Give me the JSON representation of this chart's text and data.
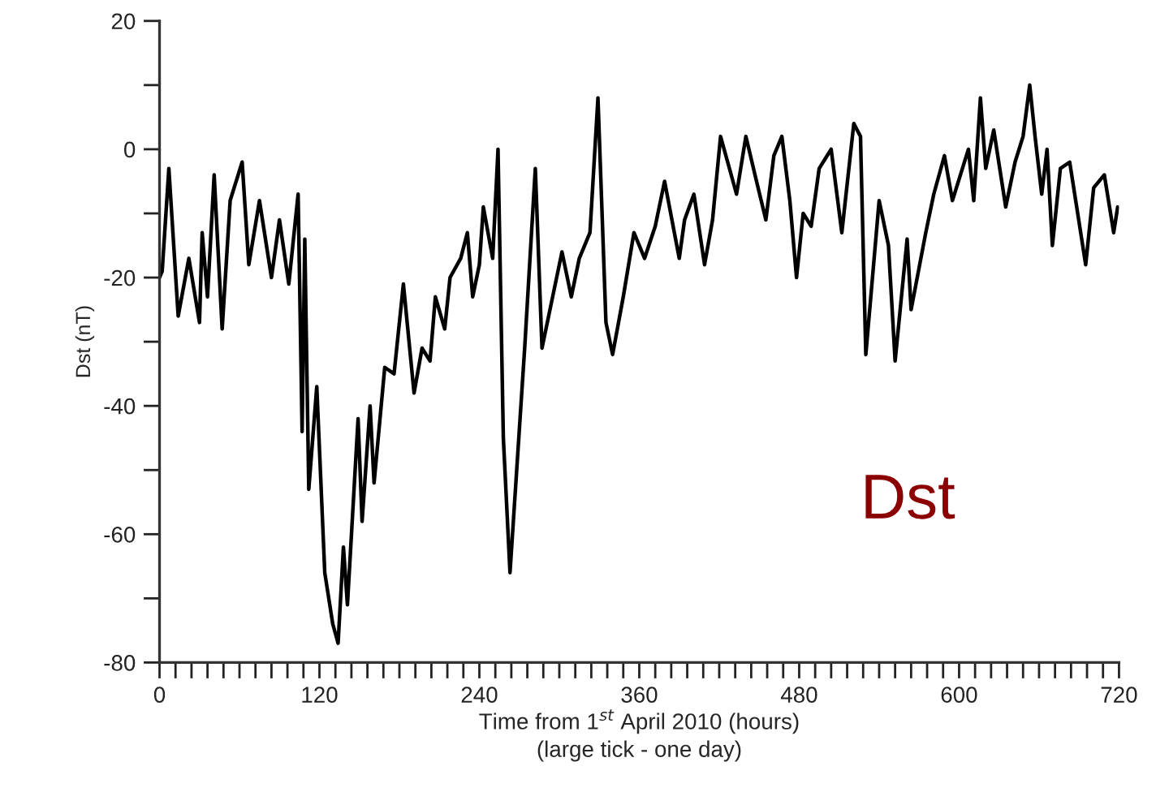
{
  "chart_data": {
    "type": "line",
    "xlabel": "Time from 1$^{st}$ April 2010 (hours)\n(large tick - one day)",
    "ylabel": "Dst (nT)",
    "annotations": [
      "Dst"
    ],
    "grid": false,
    "legend": false,
    "marker": "none",
    "line_style": "solid",
    "xlim": [
      0,
      720
    ],
    "ylim": [
      -80,
      20
    ],
    "xticks": [
      0,
      {
        "value": 12,
        "label": null
      },
      {
        "value": 24,
        "label": null
      },
      {
        "value": 36,
        "label": null
      },
      {
        "value": 48,
        "label": null
      },
      {
        "value": 60,
        "label": null
      },
      {
        "value": 72,
        "label": null
      },
      {
        "value": 84,
        "label": null
      },
      {
        "value": 96,
        "label": null
      },
      {
        "value": 108,
        "label": null
      },
      120,
      {
        "value": 132,
        "label": null
      },
      {
        "value": 144,
        "label": null
      },
      {
        "value": 156,
        "label": null
      },
      {
        "value": 168,
        "label": null
      },
      {
        "value": 180,
        "label": null
      },
      {
        "value": 192,
        "label": null
      },
      {
        "value": 204,
        "label": null
      },
      {
        "value": 216,
        "label": null
      },
      {
        "value": 228,
        "label": null
      },
      240,
      {
        "value": 252,
        "label": null
      },
      {
        "value": 264,
        "label": null
      },
      {
        "value": 276,
        "label": null
      },
      {
        "value": 288,
        "label": null
      },
      {
        "value": 300,
        "label": null
      },
      {
        "value": 312,
        "label": null
      },
      {
        "value": 324,
        "label": null
      },
      {
        "value": 336,
        "label": null
      },
      {
        "value": 348,
        "label": null
      },
      360,
      {
        "value": 372,
        "label": null
      },
      {
        "value": 384,
        "label": null
      },
      {
        "value": 396,
        "label": null
      },
      {
        "value": 408,
        "label": null
      },
      {
        "value": 420,
        "label": null
      },
      {
        "value": 432,
        "label": null
      },
      {
        "value": 444,
        "label": null
      },
      {
        "value": 456,
        "label": null
      },
      {
        "value": 468,
        "label": null
      },
      480,
      {
        "value": 492,
        "label": null
      },
      {
        "value": 504,
        "label": null
      },
      {
        "value": 516,
        "label": null
      },
      {
        "value": 528,
        "label": null
      },
      {
        "value": 540,
        "label": null
      },
      {
        "value": 552,
        "label": null
      },
      {
        "value": 564,
        "label": null
      },
      {
        "value": 576,
        "label": null
      },
      {
        "value": 588,
        "label": null
      },
      600,
      {
        "value": 612,
        "label": null
      },
      {
        "value": 624,
        "label": null
      },
      {
        "value": 636,
        "label": null
      },
      {
        "value": 648,
        "label": null
      },
      {
        "value": 660,
        "label": null
      },
      {
        "value": 672,
        "label": null
      },
      {
        "value": 684,
        "label": null
      },
      {
        "value": 696,
        "label": null
      },
      {
        "value": 708,
        "label": null
      },
      720
    ],
    "yticks": [
      -80,
      {
        "value": -70,
        "label": null
      },
      -60,
      {
        "value": -50,
        "label": null
      },
      -40,
      {
        "value": -30,
        "label": null
      },
      -20,
      {
        "value": -10,
        "label": null
      },
      0,
      {
        "value": 10,
        "label": null
      },
      20
    ],
    "series": [
      {
        "color": "#000000",
        "x": [
          0,
          2,
          7,
          14,
          22,
          30,
          32,
          36,
          41,
          47,
          53,
          62,
          67,
          75,
          84,
          90,
          97,
          104,
          107,
          109,
          112,
          118,
          124,
          130,
          134,
          138,
          141,
          149,
          152,
          158,
          161,
          169,
          176,
          183,
          191,
          197,
          203,
          207,
          214,
          218,
          226,
          231,
          235,
          240,
          243,
          250,
          254,
          258,
          263,
          274,
          282,
          287,
          294,
          302,
          309,
          315,
          323,
          329,
          335,
          340,
          348,
          356,
          364,
          372,
          379,
          390,
          394,
          401,
          409,
          415,
          421,
          433,
          440,
          448,
          455,
          461,
          467,
          473,
          478,
          483,
          489,
          495,
          504,
          512,
          521,
          526,
          530,
          540,
          547,
          552,
          561,
          564,
          575,
          581,
          589,
          595,
          607,
          611,
          616,
          620,
          626,
          635,
          642,
          648,
          653,
          657,
          662,
          666,
          670,
          676,
          683,
          695,
          701,
          709,
          716,
          719
        ],
        "values": [
          -20,
          -19,
          -3,
          -26,
          -17,
          -27,
          -13,
          -23,
          -4,
          -28,
          -8,
          -2,
          -18,
          -8,
          -20,
          -11,
          -21,
          -7,
          -44,
          -14,
          -53,
          -37,
          -66,
          -74,
          -77,
          -62,
          -71,
          -42,
          -58,
          -40,
          -52,
          -34,
          -35,
          -21,
          -38,
          -31,
          -33,
          -23,
          -28,
          -20,
          -17,
          -13,
          -23,
          -18,
          -9,
          -17,
          0,
          -45,
          -66,
          -31,
          -3,
          -31,
          -24,
          -16,
          -23,
          -17,
          -13,
          8,
          -27,
          -32,
          -23,
          -13,
          -17,
          -12,
          -5,
          -17,
          -11,
          -7,
          -18,
          -11,
          2,
          -7,
          2,
          -5,
          -11,
          -1,
          2,
          -8,
          -20,
          -10,
          -12,
          -3,
          0,
          -13,
          4,
          2,
          -32,
          -8,
          -15,
          -33,
          -14,
          -25,
          -13,
          -7,
          -1,
          -8,
          0,
          -8,
          8,
          -3,
          3,
          -9,
          -2,
          2,
          10,
          2,
          -7,
          0,
          -15,
          -3,
          -2,
          -18,
          -6,
          -4,
          -13,
          -9
        ]
      }
    ]
  }
}
